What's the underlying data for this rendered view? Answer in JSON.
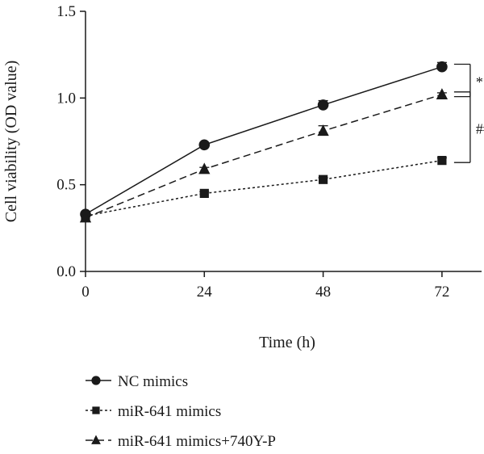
{
  "chart_data": {
    "type": "line",
    "title": "",
    "xlabel": "Time (h)",
    "ylabel": "Cell viability (OD value)",
    "x": [
      0,
      24,
      48,
      72
    ],
    "xlim": [
      0,
      80
    ],
    "ylim": [
      0.0,
      1.5
    ],
    "xticks": [
      "0",
      "24",
      "48",
      "72"
    ],
    "yticks": [
      "0.0",
      "0.5",
      "1.0",
      "1.5"
    ],
    "grid": false,
    "legend_position": "bottom-left",
    "series": [
      {
        "name": "NC mimics",
        "marker": "circle",
        "line_style": "solid",
        "values": [
          0.33,
          0.73,
          0.96,
          1.18
        ],
        "errors": [
          0.01,
          0.01,
          0.025,
          0.025
        ]
      },
      {
        "name": "miR-641 mimics",
        "marker": "square",
        "line_style": "dotted",
        "values": [
          0.32,
          0.45,
          0.53,
          0.64
        ],
        "errors": [
          0.01,
          0.01,
          0.01,
          0.015
        ]
      },
      {
        "name": "miR-641 mimics+740Y-P",
        "marker": "triangle",
        "line_style": "dashed",
        "values": [
          0.31,
          0.59,
          0.81,
          1.02
        ],
        "errors": [
          0.01,
          0.01,
          0.03,
          0.01
        ]
      }
    ],
    "annotations": [
      {
        "text": "**",
        "between": [
          "NC mimics",
          "miR-641 mimics+740Y-P"
        ],
        "at_x": 72
      },
      {
        "text": "##",
        "between": [
          "miR-641 mimics+740Y-P",
          "miR-641 mimics"
        ],
        "at_x": 72
      }
    ]
  }
}
